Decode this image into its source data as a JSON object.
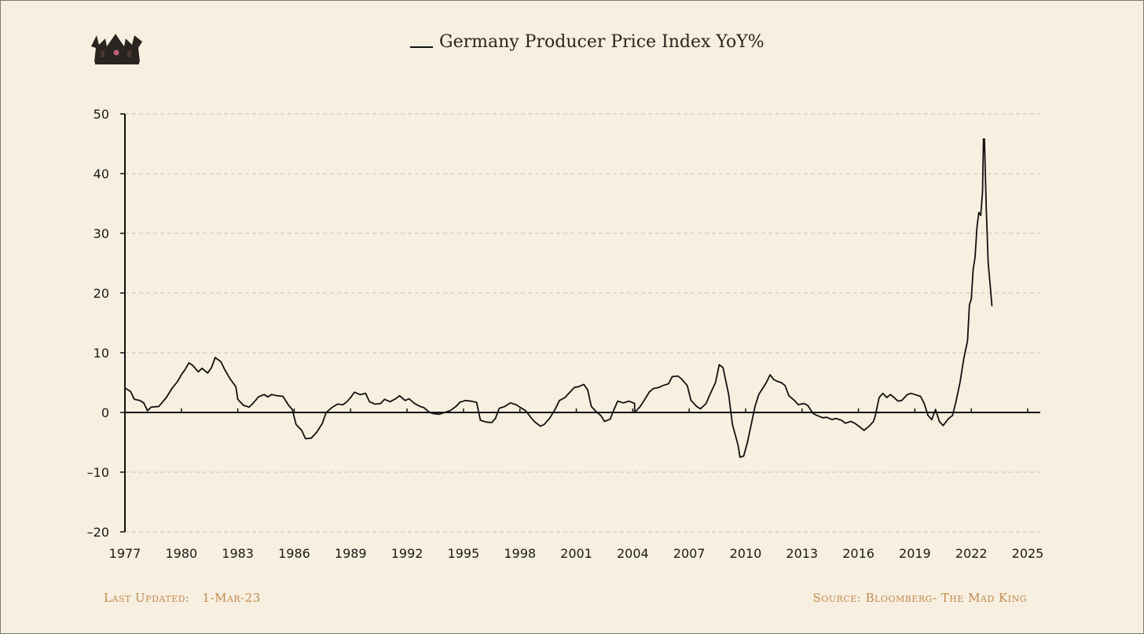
{
  "chart_data": {
    "type": "line",
    "title": "Germany Producer Price Index YoY%",
    "series": [
      {
        "name": "Germany Producer Price Index YoY%",
        "color": "#111111",
        "points": [
          [
            1977.0,
            4.1
          ],
          [
            1977.3,
            3.5
          ],
          [
            1977.5,
            2.2
          ],
          [
            1977.8,
            2.0
          ],
          [
            1978.0,
            1.6
          ],
          [
            1978.2,
            0.3
          ],
          [
            1978.4,
            0.9
          ],
          [
            1978.8,
            1.0
          ],
          [
            1979.2,
            2.5
          ],
          [
            1979.5,
            4.0
          ],
          [
            1979.8,
            5.2
          ],
          [
            1980.0,
            6.3
          ],
          [
            1980.2,
            7.2
          ],
          [
            1980.4,
            8.3
          ],
          [
            1980.6,
            7.9
          ],
          [
            1980.9,
            6.8
          ],
          [
            1981.1,
            7.4
          ],
          [
            1981.4,
            6.6
          ],
          [
            1981.6,
            7.5
          ],
          [
            1981.8,
            9.2
          ],
          [
            1982.1,
            8.5
          ],
          [
            1982.3,
            7.2
          ],
          [
            1982.6,
            5.6
          ],
          [
            1982.9,
            4.3
          ],
          [
            1983.0,
            2.2
          ],
          [
            1983.3,
            1.2
          ],
          [
            1983.6,
            0.9
          ],
          [
            1983.8,
            1.5
          ],
          [
            1984.1,
            2.6
          ],
          [
            1984.4,
            3.0
          ],
          [
            1984.6,
            2.6
          ],
          [
            1984.8,
            3.0
          ],
          [
            1985.1,
            2.8
          ],
          [
            1985.4,
            2.7
          ],
          [
            1985.7,
            1.2
          ],
          [
            1985.9,
            0.5
          ],
          [
            1986.1,
            -2.0
          ],
          [
            1986.4,
            -3.0
          ],
          [
            1986.6,
            -4.4
          ],
          [
            1986.9,
            -4.3
          ],
          [
            1987.2,
            -3.3
          ],
          [
            1987.5,
            -1.8
          ],
          [
            1987.7,
            0.0
          ],
          [
            1988.0,
            0.8
          ],
          [
            1988.3,
            1.4
          ],
          [
            1988.6,
            1.3
          ],
          [
            1988.8,
            1.8
          ],
          [
            1989.0,
            2.5
          ],
          [
            1989.2,
            3.4
          ],
          [
            1989.5,
            3.0
          ],
          [
            1989.8,
            3.2
          ],
          [
            1990.0,
            1.8
          ],
          [
            1990.3,
            1.4
          ],
          [
            1990.6,
            1.5
          ],
          [
            1990.8,
            2.2
          ],
          [
            1991.1,
            1.8
          ],
          [
            1991.4,
            2.3
          ],
          [
            1991.6,
            2.8
          ],
          [
            1991.9,
            2.0
          ],
          [
            1992.1,
            2.3
          ],
          [
            1992.4,
            1.5
          ],
          [
            1992.7,
            1.0
          ],
          [
            1992.9,
            0.8
          ],
          [
            1993.2,
            0.0
          ],
          [
            1993.4,
            -0.2
          ],
          [
            1993.7,
            -0.3
          ],
          [
            1994.0,
            0.0
          ],
          [
            1994.3,
            0.3
          ],
          [
            1994.6,
            1.0
          ],
          [
            1994.8,
            1.7
          ],
          [
            1995.1,
            2.0
          ],
          [
            1995.4,
            1.9
          ],
          [
            1995.7,
            1.7
          ],
          [
            1995.9,
            -1.3
          ],
          [
            1996.2,
            -1.6
          ],
          [
            1996.5,
            -1.7
          ],
          [
            1996.7,
            -1.0
          ],
          [
            1996.9,
            0.7
          ],
          [
            1997.2,
            1.0
          ],
          [
            1997.5,
            1.6
          ],
          [
            1997.8,
            1.3
          ],
          [
            1998.0,
            0.9
          ],
          [
            1998.3,
            0.3
          ],
          [
            1998.6,
            -0.9
          ],
          [
            1998.8,
            -1.6
          ],
          [
            1999.1,
            -2.3
          ],
          [
            1999.3,
            -2.0
          ],
          [
            1999.6,
            -0.9
          ],
          [
            1999.9,
            0.7
          ],
          [
            2000.1,
            2.0
          ],
          [
            2000.4,
            2.5
          ],
          [
            2000.6,
            3.2
          ],
          [
            2000.9,
            4.2
          ],
          [
            2001.1,
            4.3
          ],
          [
            2001.4,
            4.7
          ],
          [
            2001.6,
            3.8
          ],
          [
            2001.8,
            1.0
          ],
          [
            2002.1,
            0.0
          ],
          [
            2002.3,
            -0.5
          ],
          [
            2002.5,
            -1.5
          ],
          [
            2002.8,
            -1.1
          ],
          [
            2003.0,
            0.5
          ],
          [
            2003.2,
            1.9
          ],
          [
            2003.5,
            1.6
          ],
          [
            2003.8,
            1.9
          ],
          [
            2004.1,
            1.5
          ],
          [
            2004.1,
            0.0
          ],
          [
            2004.4,
            1.0
          ],
          [
            2004.6,
            2.0
          ],
          [
            2004.9,
            3.5
          ],
          [
            2005.1,
            4.0
          ],
          [
            2005.4,
            4.2
          ],
          [
            2005.6,
            4.5
          ],
          [
            2005.9,
            4.8
          ],
          [
            2006.1,
            6.0
          ],
          [
            2006.4,
            6.1
          ],
          [
            2006.6,
            5.6
          ],
          [
            2006.9,
            4.5
          ],
          [
            2007.1,
            2.0
          ],
          [
            2007.4,
            1.0
          ],
          [
            2007.6,
            0.6
          ],
          [
            2007.9,
            1.5
          ],
          [
            2008.1,
            3.0
          ],
          [
            2008.4,
            5.0
          ],
          [
            2008.6,
            8.0
          ],
          [
            2008.8,
            7.5
          ],
          [
            2009.1,
            3.0
          ],
          [
            2009.3,
            -2.0
          ],
          [
            2009.6,
            -5.5
          ],
          [
            2009.7,
            -7.5
          ],
          [
            2009.9,
            -7.3
          ],
          [
            2010.1,
            -5.0
          ],
          [
            2010.3,
            -2.0
          ],
          [
            2010.5,
            1.0
          ],
          [
            2010.7,
            3.0
          ],
          [
            2010.9,
            4.0
          ],
          [
            2011.1,
            5.0
          ],
          [
            2011.3,
            6.3
          ],
          [
            2011.5,
            5.5
          ],
          [
            2011.7,
            5.2
          ],
          [
            2011.9,
            5.0
          ],
          [
            2012.1,
            4.5
          ],
          [
            2012.3,
            2.8
          ],
          [
            2012.6,
            2.0
          ],
          [
            2012.8,
            1.3
          ],
          [
            2013.1,
            1.5
          ],
          [
            2013.3,
            1.2
          ],
          [
            2013.6,
            -0.2
          ],
          [
            2013.8,
            -0.5
          ],
          [
            2014.1,
            -0.9
          ],
          [
            2014.3,
            -0.8
          ],
          [
            2014.6,
            -1.2
          ],
          [
            2014.8,
            -1.0
          ],
          [
            2015.1,
            -1.3
          ],
          [
            2015.3,
            -1.8
          ],
          [
            2015.6,
            -1.5
          ],
          [
            2015.8,
            -1.8
          ],
          [
            2016.1,
            -2.5
          ],
          [
            2016.3,
            -3.0
          ],
          [
            2016.6,
            -2.2
          ],
          [
            2016.8,
            -1.5
          ],
          [
            2016.9,
            -0.5
          ],
          [
            2017.1,
            2.5
          ],
          [
            2017.3,
            3.2
          ],
          [
            2017.5,
            2.5
          ],
          [
            2017.7,
            3.0
          ],
          [
            2017.9,
            2.5
          ],
          [
            2018.1,
            1.9
          ],
          [
            2018.3,
            2.0
          ],
          [
            2018.6,
            3.0
          ],
          [
            2018.8,
            3.2
          ],
          [
            2019.0,
            3.0
          ],
          [
            2019.3,
            2.7
          ],
          [
            2019.5,
            1.5
          ],
          [
            2019.7,
            -0.5
          ],
          [
            2019.9,
            -1.2
          ],
          [
            2020.1,
            0.5
          ],
          [
            2020.3,
            -1.5
          ],
          [
            2020.5,
            -2.2
          ],
          [
            2020.8,
            -1.0
          ],
          [
            2021.0,
            -0.5
          ],
          [
            2021.2,
            2.0
          ],
          [
            2021.4,
            5.0
          ],
          [
            2021.6,
            9.0
          ],
          [
            2021.8,
            12.0
          ],
          [
            2021.9,
            18.0
          ],
          [
            2022.0,
            19.0
          ],
          [
            2022.1,
            24.0
          ],
          [
            2022.2,
            26.0
          ],
          [
            2022.3,
            31.0
          ],
          [
            2022.4,
            33.5
          ],
          [
            2022.5,
            33.0
          ],
          [
            2022.6,
            37.0
          ],
          [
            2022.65,
            45.8
          ],
          [
            2022.7,
            45.8
          ],
          [
            2022.8,
            34.0
          ],
          [
            2022.9,
            25.0
          ],
          [
            2023.0,
            21.5
          ],
          [
            2023.1,
            17.8
          ]
        ]
      }
    ],
    "xlim": [
      1977,
      2025
    ],
    "ylim": [
      -20,
      50
    ],
    "xticks": [
      1977,
      1980,
      1983,
      1986,
      1989,
      1992,
      1995,
      1998,
      2001,
      2004,
      2007,
      2010,
      2013,
      2016,
      2019,
      2022,
      2025
    ],
    "yticks": [
      -20,
      -10,
      0,
      10,
      20,
      30,
      40,
      50
    ],
    "ytick_labels": [
      "–20",
      "–10",
      "0",
      "10",
      "20",
      "30",
      "40",
      "50"
    ],
    "grid": true,
    "legend": "top-center"
  },
  "footer": {
    "last_updated_label": "Last Updated:",
    "last_updated_value": "1-Mar-23",
    "source": "Source: Bloomberg- The Mad King"
  },
  "logo": {
    "icon": "crown-icon"
  }
}
